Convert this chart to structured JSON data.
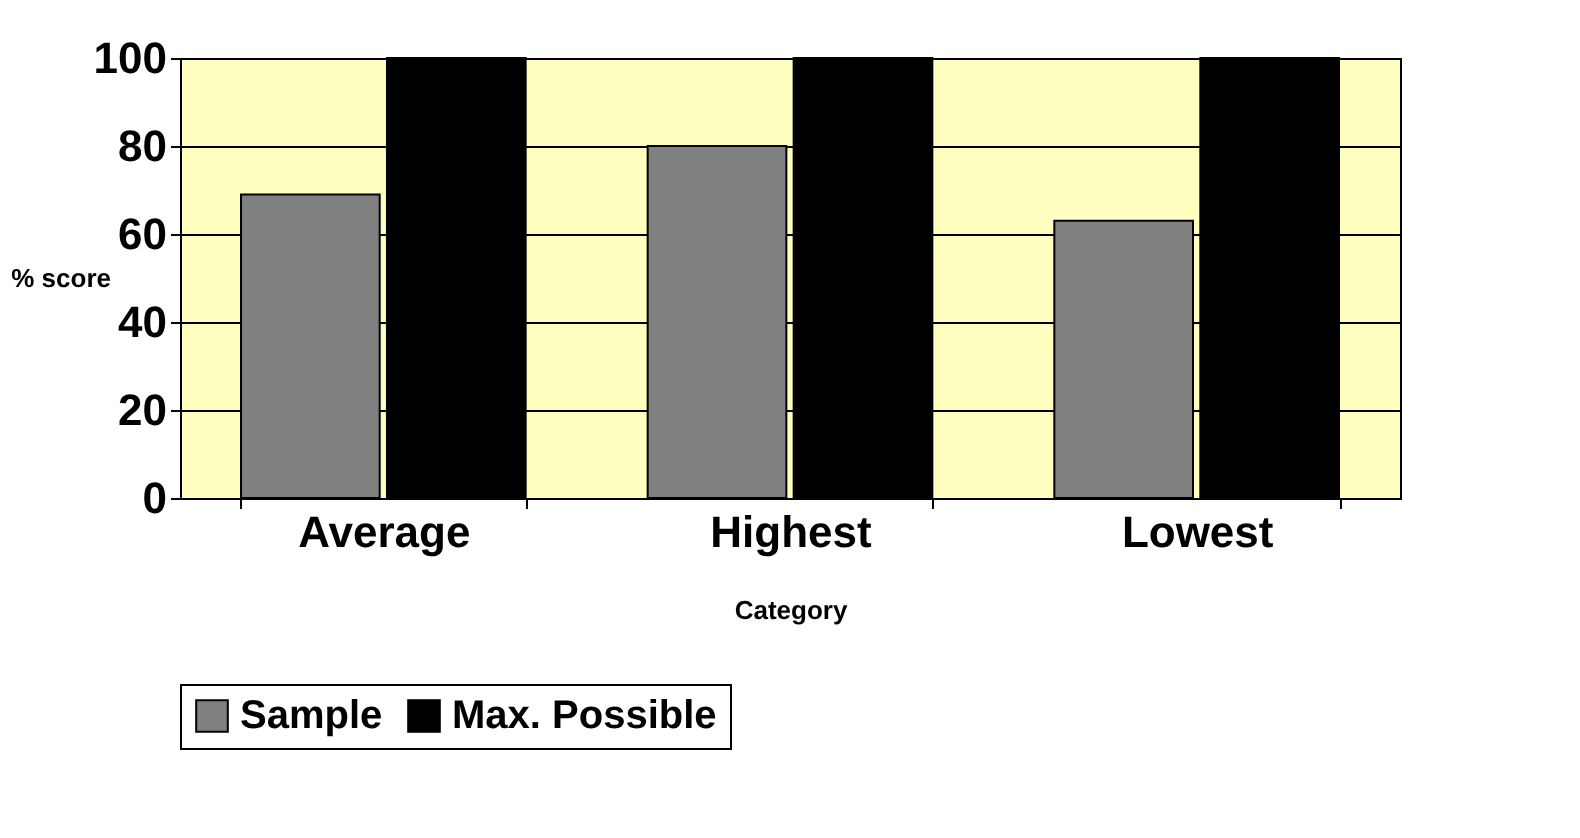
{
  "chart_data": {
    "type": "bar",
    "xlabel": "Category",
    "ylabel": "% score",
    "categories": [
      "Average",
      "Highest",
      "Lowest"
    ],
    "series": [
      {
        "name": "Sample",
        "color": "#808080",
        "values": [
          69,
          80,
          63
        ]
      },
      {
        "name": "Max. Possible",
        "color": "#000000",
        "values": [
          100,
          100,
          100
        ]
      }
    ],
    "ylim": [
      0,
      100
    ],
    "yticks": [
      0,
      20,
      40,
      60,
      80,
      100
    ],
    "grid": "y",
    "legend": "bottom"
  }
}
